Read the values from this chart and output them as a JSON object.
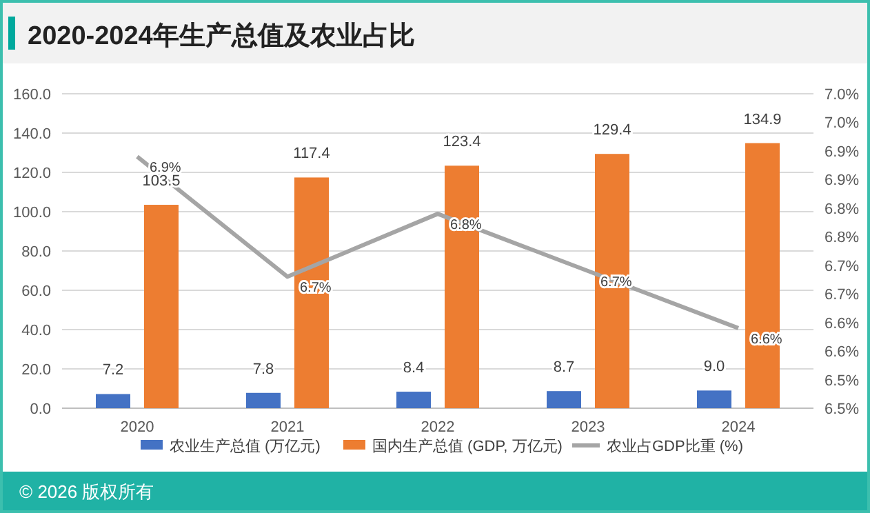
{
  "chart_data": {
    "type": "bar",
    "title": "2020-2024年生产总值及农业占比",
    "categories": [
      "2020",
      "2021",
      "2022",
      "2023",
      "2024"
    ],
    "series": [
      {
        "name": "农业生产总值 (万亿元)",
        "color": "#4472c4",
        "values": [
          7.2,
          7.8,
          8.4,
          8.7,
          9.0
        ],
        "value_labels": [
          "7.2",
          "7.8",
          "8.4",
          "8.7",
          "9.0"
        ]
      },
      {
        "name": "国内生产总值 (GDP, 万亿元)",
        "color": "#ed7d31",
        "values": [
          103.5,
          117.4,
          123.4,
          129.4,
          134.9
        ],
        "value_labels": [
          "103.5",
          "117.4",
          "123.4",
          "129.4",
          "134.9"
        ]
      },
      {
        "name": "农业占GDP比重 (%)",
        "type": "line",
        "axis": "y2",
        "color": "#a5a5a5",
        "values": [
          6.94,
          6.73,
          6.84,
          6.74,
          6.64
        ],
        "value_labels": [
          "6.9%",
          "6.7%",
          "6.8%",
          "6.7%",
          "6.6%"
        ]
      }
    ],
    "ylim": [
      0,
      160
    ],
    "yticks": [
      {
        "value": 0,
        "label": "0.0"
      },
      {
        "value": 20,
        "label": "20.0"
      },
      {
        "value": 40,
        "label": "40.0"
      },
      {
        "value": 60,
        "label": "60.0"
      },
      {
        "value": 80,
        "label": "80.0"
      },
      {
        "value": 100,
        "label": "100.0"
      },
      {
        "value": 120,
        "label": "120.0"
      },
      {
        "value": 140,
        "label": "140.0"
      },
      {
        "value": 160,
        "label": "160.0"
      }
    ],
    "y2lim": [
      6.5,
      7.05
    ],
    "y2ticks": [
      {
        "value": 6.5,
        "label": "6.5%"
      },
      {
        "value": 6.55,
        "label": "6.5%"
      },
      {
        "value": 6.6,
        "label": "6.6%"
      },
      {
        "value": 6.65,
        "label": "6.6%"
      },
      {
        "value": 6.7,
        "label": "6.7%"
      },
      {
        "value": 6.75,
        "label": "6.7%"
      },
      {
        "value": 6.8,
        "label": "6.8%"
      },
      {
        "value": 6.85,
        "label": "6.8%"
      },
      {
        "value": 6.9,
        "label": "6.9%"
      },
      {
        "value": 6.95,
        "label": "6.9%"
      },
      {
        "value": 7.0,
        "label": "7.0%"
      },
      {
        "value": 7.05,
        "label": "7.0%"
      }
    ],
    "grid": "y",
    "legend": "bottom",
    "annotations": [
      "© 2026 版权所有"
    ]
  }
}
